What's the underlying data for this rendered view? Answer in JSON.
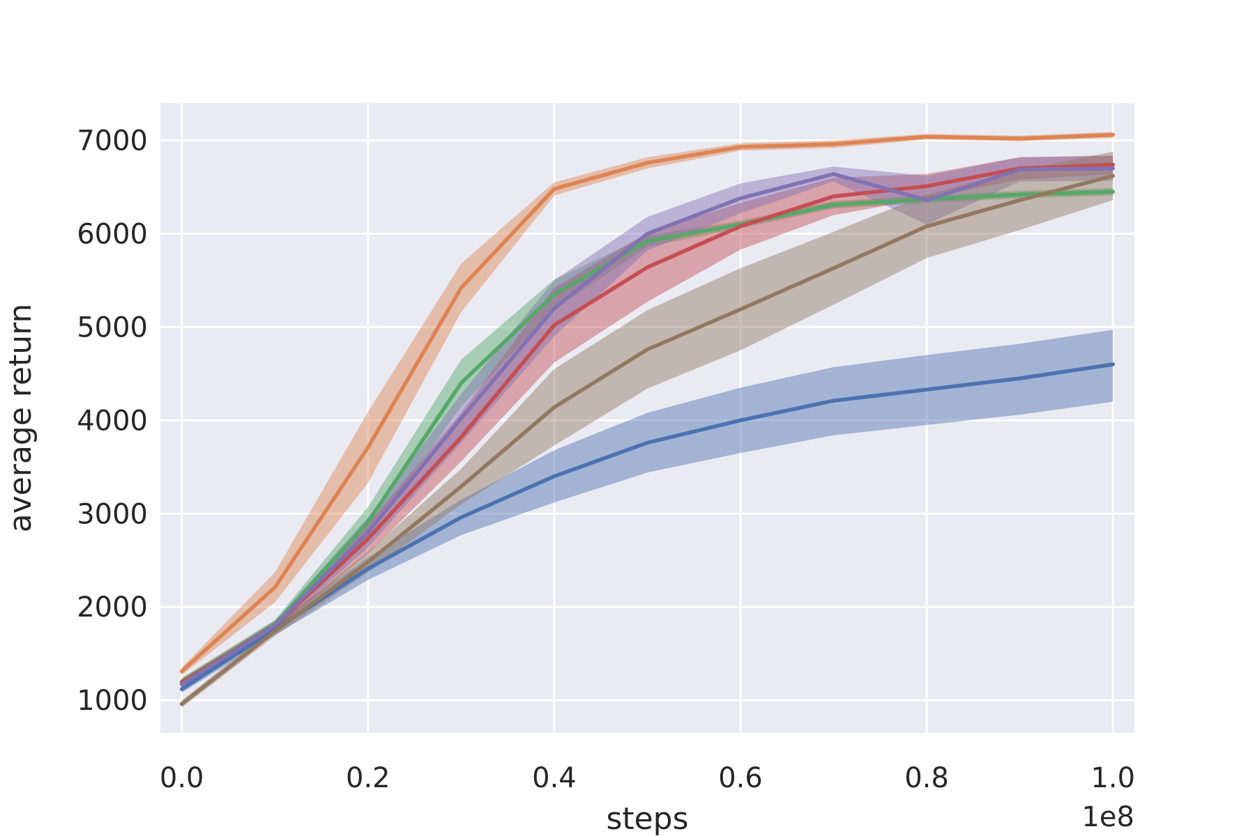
{
  "chart_data": {
    "type": "line",
    "xlabel": "steps",
    "ylabel": "average return",
    "x_offset_text": "1e8",
    "xlim": [
      -0.023,
      1.023
    ],
    "ylim": [
      650,
      7400
    ],
    "xticks": [
      0.0,
      0.2,
      0.4,
      0.6,
      0.8,
      1.0
    ],
    "xtick_labels": [
      "0.0",
      "0.2",
      "0.4",
      "0.6",
      "0.8",
      "1.0"
    ],
    "yticks": [
      1000,
      2000,
      3000,
      4000,
      5000,
      6000,
      7000
    ],
    "ytick_labels": [
      "1000",
      "2000",
      "3000",
      "4000",
      "5000",
      "6000",
      "7000"
    ],
    "grid": true,
    "background": "#eaeaf2",
    "x": [
      0.0,
      0.1,
      0.2,
      0.3,
      0.4,
      0.5,
      0.6,
      0.7,
      0.8,
      0.9,
      1.0
    ],
    "series": [
      {
        "color": "#4c72b0",
        "values": [
          1120,
          1760,
          2410,
          2960,
          3400,
          3760,
          4000,
          4210,
          4330,
          4450,
          4600
        ],
        "lower": [
          1080,
          1700,
          2290,
          2770,
          3120,
          3440,
          3650,
          3840,
          3950,
          4060,
          4200
        ],
        "upper": [
          1160,
          1820,
          2530,
          3150,
          3680,
          4080,
          4350,
          4570,
          4700,
          4820,
          4970
        ]
      },
      {
        "color": "#dd8452",
        "values": [
          1310,
          2210,
          3710,
          5420,
          6480,
          6760,
          6930,
          6960,
          7040,
          7020,
          7060
        ],
        "lower": [
          1270,
          2050,
          3330,
          5160,
          6410,
          6700,
          6890,
          6920,
          7010,
          6990,
          7030
        ],
        "upper": [
          1350,
          2370,
          4090,
          5680,
          6550,
          6820,
          6970,
          7000,
          7070,
          7050,
          7090
        ]
      },
      {
        "color": "#55a868",
        "values": [
          1200,
          1810,
          2910,
          4400,
          5350,
          5920,
          6100,
          6310,
          6370,
          6420,
          6450
        ],
        "lower": [
          1160,
          1760,
          2750,
          4150,
          5190,
          5860,
          6060,
          6270,
          6330,
          6380,
          6410
        ],
        "upper": [
          1240,
          1860,
          3070,
          4650,
          5510,
          5980,
          6140,
          6350,
          6410,
          6460,
          6490
        ]
      },
      {
        "color": "#c44e52",
        "values": [
          1190,
          1800,
          2730,
          3820,
          5020,
          5640,
          6080,
          6400,
          6510,
          6700,
          6740
        ],
        "lower": [
          1150,
          1750,
          2570,
          3560,
          4620,
          5270,
          5830,
          6200,
          6380,
          6580,
          6640
        ],
        "upper": [
          1230,
          1850,
          2890,
          4080,
          5420,
          6010,
          6330,
          6600,
          6640,
          6820,
          6840
        ]
      },
      {
        "color": "#8172b3",
        "values": [
          1170,
          1800,
          2800,
          4020,
          5200,
          6000,
          6380,
          6640,
          6360,
          6690,
          6700
        ],
        "lower": [
          1130,
          1750,
          2640,
          3760,
          4900,
          5820,
          6220,
          6560,
          6100,
          6560,
          6570
        ],
        "upper": [
          1210,
          1850,
          2960,
          4280,
          5500,
          6180,
          6540,
          6720,
          6620,
          6820,
          6830
        ]
      },
      {
        "color": "#937860",
        "values": [
          960,
          1740,
          2480,
          3290,
          4140,
          4760,
          5190,
          5630,
          6080,
          6360,
          6620
        ],
        "lower": [
          920,
          1690,
          2370,
          3100,
          3730,
          4340,
          4750,
          5240,
          5740,
          6040,
          6360
        ],
        "upper": [
          1000,
          1790,
          2590,
          3480,
          4550,
          5180,
          5630,
          6020,
          6420,
          6680,
          6880
        ]
      }
    ]
  }
}
